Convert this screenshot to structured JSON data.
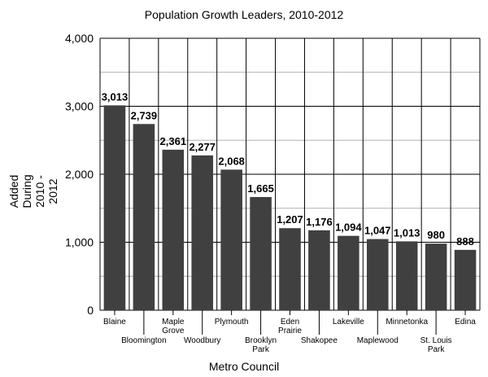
{
  "chart_data": {
    "type": "bar",
    "title": "Population Growth Leaders, 2010-2012",
    "xlabel": "Metro Council",
    "ylabel_lines": [
      "Added",
      "During",
      "2010 -",
      "2012"
    ],
    "categories": [
      [
        "Blaine"
      ],
      [
        "Bloomington"
      ],
      [
        "Maple",
        "Grove"
      ],
      [
        "Woodbury"
      ],
      [
        "Plymouth"
      ],
      [
        "Brooklyn",
        "Park"
      ],
      [
        "Eden",
        "Prairie"
      ],
      [
        "Shakopee"
      ],
      [
        "Lakeville"
      ],
      [
        "Maplewood"
      ],
      [
        "Minnetonka"
      ],
      [
        "St. Louis",
        "Park"
      ],
      [
        "Edina"
      ]
    ],
    "values": [
      3013,
      2739,
      2361,
      2277,
      2068,
      1665,
      1207,
      1176,
      1094,
      1047,
      1013,
      980,
      888
    ],
    "data_labels": [
      "3,013",
      "2,739",
      "2,361",
      "2,277",
      "2,068",
      "1,665",
      "1,207",
      "1,176",
      "1,094",
      "1,047",
      "1,013",
      "980",
      "888"
    ],
    "ylim": [
      0,
      4000
    ],
    "yticks": [
      0,
      1000,
      2000,
      3000,
      4000
    ],
    "ytick_labels": [
      "0",
      "1,000",
      "2,000",
      "3,000",
      "4,000"
    ],
    "minor_gridlines": [
      500,
      1500,
      2500,
      3500
    ],
    "grid": true,
    "bar_color": "#404040",
    "grid_color": "#000000",
    "minor_grid_color": "#b0b0b0"
  }
}
